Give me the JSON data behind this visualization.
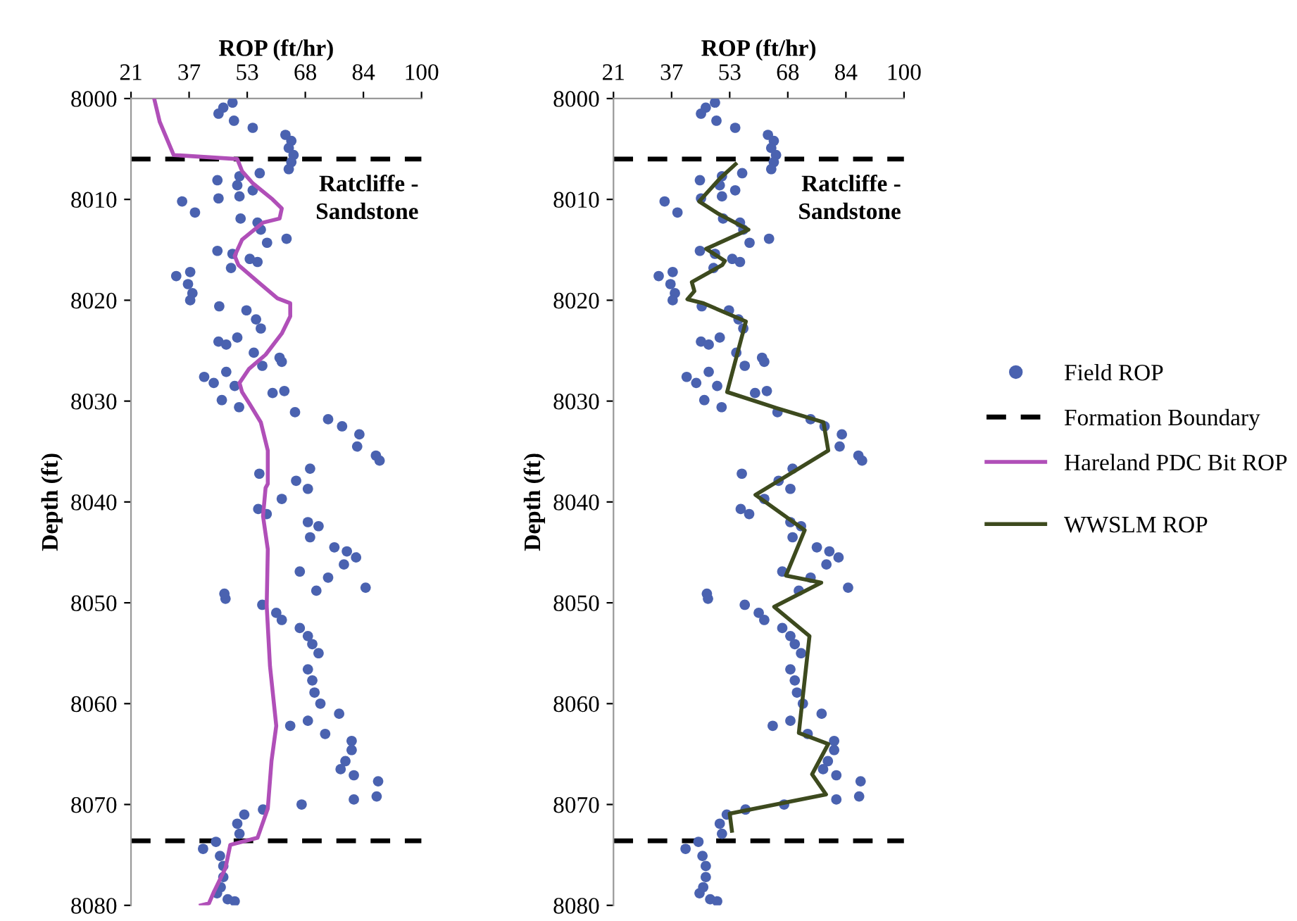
{
  "chart_data": [
    {
      "type": "scatter",
      "xlabel": "ROP (ft/hr)",
      "ylabel": "Depth (ft)",
      "xlim": [
        21,
        100
      ],
      "xticks": [
        21,
        {
          "value": 36.8,
          "label": "37"
        },
        {
          "value": 52.6,
          "label": "53"
        },
        {
          "value": 68.4,
          "label": "68"
        },
        {
          "value": 84.2,
          "label": "84"
        },
        100
      ],
      "ylim": [
        8080,
        8000
      ],
      "yticks": [
        8000,
        8010,
        8020,
        8030,
        8040,
        8050,
        8060,
        8070,
        8080
      ],
      "grid": false,
      "legend": "right",
      "annotations": [
        "Ratcliffe -\nSandstone"
      ],
      "ref_lines": [
        {
          "axis": "y",
          "value": 8006,
          "label": "Formation Boundary",
          "color": "#000000",
          "line_style": "dashed"
        },
        {
          "axis": "y",
          "value": 8073.6,
          "color": "#000000",
          "line_style": "dashed"
        }
      ],
      "series": [
        {
          "name": "Field ROP",
          "marker": "circle",
          "color": "#4a62b0",
          "x": [
            48.6,
            46.1,
            44.8,
            49.0,
            54.1,
            63.0,
            64.6,
            63.9,
            65.2,
            64.6,
            63.9,
            56.0,
            50.5,
            44.5,
            49.9,
            54.1,
            50.5,
            44.8,
            34.9,
            38.4,
            50.8,
            55.4,
            56.3,
            58.0,
            63.3,
            44.5,
            48.6,
            53.3,
            55.4,
            48.2,
            33.3,
            37.1,
            36.5,
            37.7,
            37.1,
            45.0,
            52.4,
            55.0,
            56.3,
            49.9,
            44.8,
            46.9,
            54.4,
            61.4,
            56.7,
            62.0,
            40.9,
            43.5,
            46.9,
            49.2,
            45.7,
            50.4,
            59.5,
            62.7,
            65.6,
            74.6,
            78.4,
            83.1,
            82.5,
            87.6,
            88.6,
            69.7,
            55.9,
            65.9,
            69.1,
            62.0,
            55.6,
            57.9,
            69.1,
            72.0,
            69.7,
            76.3,
            79.7,
            82.2,
            78.9,
            66.9,
            74.6,
            71.4,
            84.8,
            46.7,
            46.4,
            56.7,
            60.5,
            62.0,
            66.9,
            69.1,
            70.3,
            72.0,
            69.1,
            70.3,
            70.9,
            72.5,
            77.6,
            64.3,
            69.1,
            73.8,
            81.0,
            81.0,
            79.3,
            78.0,
            81.6,
            88.2,
            87.8,
            81.6,
            67.4,
            56.9,
            51.8,
            49.9,
            50.5,
            44.1,
            40.6,
            45.2,
            46.1,
            46.1,
            45.4,
            44.4,
            47.3,
            49.2
          ],
          "values": [
            8000.4,
            8000.9,
            8001.5,
            8002.2,
            8002.9,
            8003.6,
            8004.2,
            8004.9,
            8005.6,
            8006.3,
            8007.0,
            8007.4,
            8007.7,
            8008.1,
            8008.6,
            8009.1,
            8009.7,
            8009.9,
            8010.2,
            8011.3,
            8011.9,
            8012.3,
            8013.0,
            8014.3,
            8013.9,
            8015.1,
            8015.4,
            8015.9,
            8016.2,
            8016.8,
            8017.6,
            8017.2,
            8018.4,
            8019.3,
            8020.0,
            8020.6,
            8021.0,
            8021.9,
            8022.8,
            8023.7,
            8024.1,
            8024.4,
            8025.2,
            8025.7,
            8026.5,
            8026.1,
            8027.6,
            8028.2,
            8027.1,
            8028.5,
            8029.9,
            8030.6,
            8029.2,
            8029.0,
            8031.1,
            8031.8,
            8032.5,
            8033.3,
            8034.5,
            8035.4,
            8035.9,
            8036.7,
            8037.2,
            8037.9,
            8038.7,
            8039.7,
            8040.7,
            8041.2,
            8042.0,
            8042.4,
            8043.5,
            8044.5,
            8044.9,
            8045.5,
            8046.2,
            8046.9,
            8047.5,
            8048.8,
            8048.5,
            8049.6,
            8049.1,
            8050.2,
            8051.0,
            8051.7,
            8052.5,
            8053.3,
            8054.1,
            8055.0,
            8056.6,
            8057.7,
            8058.9,
            8060.0,
            8061.0,
            8062.2,
            8061.7,
            8063.0,
            8063.7,
            8064.6,
            8065.7,
            8066.5,
            8067.1,
            8067.7,
            8069.2,
            8069.5,
            8070.0,
            8070.5,
            8071.0,
            8071.9,
            8072.9,
            8073.7,
            8074.4,
            8075.1,
            8076.1,
            8077.2,
            8078.2,
            8078.8,
            8079.4,
            8079.6
          ]
        },
        {
          "name": "Hareland PDC Bit ROP",
          "type": "line",
          "marker": "none",
          "line_style": "solid",
          "color": "#b04fb8",
          "x": [
            27.3,
            28.8,
            32.6,
            49.9,
            51.2,
            54.1,
            59.5,
            62.0,
            61.4,
            56.9,
            51.2,
            49.2,
            50.2,
            55.6,
            60.8,
            64.3,
            64.3,
            62.0,
            57.6,
            53.1,
            50.5,
            51.2,
            53.3,
            56.3,
            58.2,
            58.2,
            57.6,
            56.9,
            58.2,
            57.9,
            58.8,
            60.5,
            59.2,
            58.2,
            55.4,
            48.0,
            46.7,
            43.5,
            42.2,
            40.0
          ],
          "values": [
            8000,
            8002.3,
            8005.6,
            8006,
            8007.2,
            8008.4,
            8010.0,
            8010.9,
            8011.9,
            8012.3,
            8014.0,
            8015.6,
            8016.5,
            8018.2,
            8019.8,
            8020.3,
            8021.6,
            8023.3,
            8025.4,
            8026.8,
            8028.2,
            8029.1,
            8030.3,
            8032.1,
            8034.9,
            8038.2,
            8038.6,
            8041.4,
            8044.7,
            8050.3,
            8056.3,
            8062.2,
            8065.7,
            8070.4,
            8073.3,
            8074.0,
            8076.3,
            8078.7,
            8079.8,
            8080
          ]
        }
      ]
    },
    {
      "type": "scatter",
      "xlabel": "ROP (ft/hr)",
      "ylabel": "Depth (ft)",
      "xlim": [
        21,
        100
      ],
      "xticks": [
        21,
        {
          "value": 36.8,
          "label": "37"
        },
        {
          "value": 52.6,
          "label": "53"
        },
        {
          "value": 68.4,
          "label": "68"
        },
        {
          "value": 84.2,
          "label": "84"
        },
        100
      ],
      "ylim": [
        8080,
        8000
      ],
      "yticks": [
        8000,
        8010,
        8020,
        8030,
        8040,
        8050,
        8060,
        8070,
        8080
      ],
      "grid": false,
      "legend": "right",
      "annotations": [
        "Ratcliffe -\nSandstone"
      ],
      "ref_lines": [
        {
          "axis": "y",
          "value": 8006,
          "color": "#000000",
          "line_style": "dashed"
        },
        {
          "axis": "y",
          "value": 8073.6,
          "color": "#000000",
          "line_style": "dashed"
        }
      ],
      "series": [
        {
          "marker": "circle",
          "color": "#4a62b0",
          "x": [
            48.6,
            46.1,
            44.8,
            49.0,
            54.1,
            63.0,
            64.6,
            63.9,
            65.2,
            64.6,
            63.9,
            56.0,
            50.5,
            44.5,
            49.9,
            54.1,
            50.5,
            44.8,
            34.9,
            38.4,
            50.8,
            55.4,
            56.3,
            58.0,
            63.3,
            44.5,
            48.6,
            53.3,
            55.4,
            48.2,
            33.3,
            37.1,
            36.5,
            37.7,
            37.1,
            45.0,
            52.4,
            55.0,
            56.3,
            49.9,
            44.8,
            46.9,
            54.4,
            61.4,
            56.7,
            62.0,
            40.9,
            43.5,
            46.9,
            49.2,
            45.7,
            50.4,
            59.5,
            62.7,
            65.6,
            74.6,
            78.4,
            83.1,
            82.5,
            87.6,
            88.6,
            69.7,
            55.9,
            65.9,
            69.1,
            62.0,
            55.6,
            57.9,
            69.1,
            72.0,
            69.7,
            76.3,
            79.7,
            82.2,
            78.9,
            66.9,
            74.6,
            71.4,
            84.8,
            46.7,
            46.4,
            56.7,
            60.5,
            62.0,
            66.9,
            69.1,
            70.3,
            72.0,
            69.1,
            70.3,
            70.9,
            72.5,
            77.6,
            64.3,
            69.1,
            73.8,
            81.0,
            81.0,
            79.3,
            78.0,
            81.6,
            88.2,
            87.8,
            81.6,
            67.4,
            56.9,
            51.8,
            49.9,
            50.5,
            44.1,
            40.6,
            45.2,
            46.1,
            46.1,
            45.4,
            44.4,
            47.3,
            49.2
          ],
          "values": [
            8000.4,
            8000.9,
            8001.5,
            8002.2,
            8002.9,
            8003.6,
            8004.2,
            8004.9,
            8005.6,
            8006.3,
            8007.0,
            8007.4,
            8007.7,
            8008.1,
            8008.6,
            8009.1,
            8009.7,
            8009.9,
            8010.2,
            8011.3,
            8011.9,
            8012.3,
            8013.0,
            8014.3,
            8013.9,
            8015.1,
            8015.4,
            8015.9,
            8016.2,
            8016.8,
            8017.6,
            8017.2,
            8018.4,
            8019.3,
            8020.0,
            8020.6,
            8021.0,
            8021.9,
            8022.8,
            8023.7,
            8024.1,
            8024.4,
            8025.2,
            8025.7,
            8026.5,
            8026.1,
            8027.6,
            8028.2,
            8027.1,
            8028.5,
            8029.9,
            8030.6,
            8029.2,
            8029.0,
            8031.1,
            8031.8,
            8032.5,
            8033.3,
            8034.5,
            8035.4,
            8035.9,
            8036.7,
            8037.2,
            8037.9,
            8038.7,
            8039.7,
            8040.7,
            8041.2,
            8042.0,
            8042.4,
            8043.5,
            8044.5,
            8044.9,
            8045.5,
            8046.2,
            8046.9,
            8047.5,
            8048.8,
            8048.5,
            8049.6,
            8049.1,
            8050.2,
            8051.0,
            8051.7,
            8052.5,
            8053.3,
            8054.1,
            8055.0,
            8056.6,
            8057.7,
            8058.9,
            8060.0,
            8061.0,
            8062.2,
            8061.7,
            8063.0,
            8063.7,
            8064.6,
            8065.7,
            8066.5,
            8067.1,
            8067.7,
            8069.2,
            8069.5,
            8070.0,
            8070.5,
            8071.0,
            8071.9,
            8072.9,
            8073.7,
            8074.4,
            8075.1,
            8076.1,
            8077.2,
            8078.2,
            8078.8,
            8079.4,
            8079.6
          ]
        },
        {
          "name": "WWSLM ROP",
          "type": "line",
          "marker": "none",
          "line_style": "solid",
          "color": "#3d4a1e",
          "x": [
            54.2,
            50.0,
            44.3,
            49.4,
            57.7,
            46.2,
            51.3,
            50.6,
            42.3,
            43.0,
            41.1,
            45.5,
            57.0,
            51.9,
            65.4,
            78.1,
            79.4,
            59.6,
            73.0,
            67.9,
            77.5,
            64.7,
            74.3,
            71.4,
            79.4,
            75.0,
            78.8,
            52.6,
            53.2
          ],
          "values": [
            8006.5,
            8007.9,
            8010.2,
            8011.4,
            8013.0,
            8014.9,
            8016.1,
            8016.5,
            8018.2,
            8019.1,
            8019.9,
            8020.3,
            8022.1,
            8029.1,
            8030.7,
            8032.1,
            8034.9,
            8039.3,
            8042.8,
            8047.3,
            8048.0,
            8050.4,
            8053.3,
            8062.9,
            8064.0,
            8067.0,
            8069.0,
            8070.9,
            8072.6
          ]
        }
      ]
    }
  ]
}
